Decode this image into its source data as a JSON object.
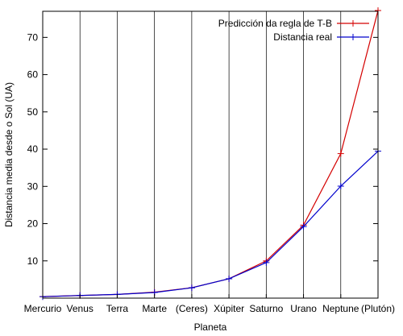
{
  "chart_data": {
    "type": "line",
    "xlabel": "Planeta",
    "ylabel": "Distancia media desde o Sol (UA)",
    "categories": [
      "Mercurio",
      "Venus",
      "Terra",
      "Marte",
      "(Ceres)",
      "Xúpiter",
      "Saturno",
      "Urano",
      "Neptune",
      "(Plutón)"
    ],
    "yticks": [
      10,
      20,
      30,
      40,
      50,
      60,
      70
    ],
    "ylim": [
      0,
      77
    ],
    "grid": "vertical",
    "legend_position": "top-right",
    "series": [
      {
        "name": "Predicción da regla de T-B",
        "color": "#d40000",
        "values": [
          0.4,
          0.7,
          1.0,
          1.6,
          2.8,
          5.2,
          10.0,
          19.6,
          38.8,
          77.2
        ]
      },
      {
        "name": "Distancia real",
        "color": "#0000cc",
        "values": [
          0.39,
          0.72,
          1.0,
          1.52,
          2.77,
          5.2,
          9.54,
          19.2,
          30.06,
          39.44
        ]
      }
    ]
  }
}
